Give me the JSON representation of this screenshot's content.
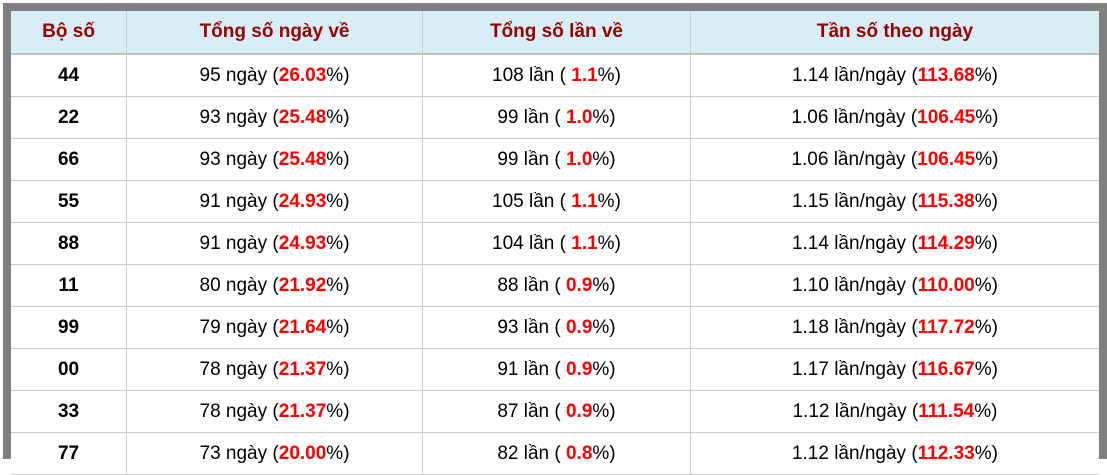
{
  "colors": {
    "frame_gray": "#7f7f7f",
    "header_bg": "#d9edf7",
    "header_text": "#990000",
    "highlight_red": "#ff0000",
    "border_light": "#cccccc",
    "body_text": "#000000"
  },
  "table": {
    "headers": [
      "Bộ số",
      "Tổng số ngày về",
      "Tổng số lần về",
      "Tần số theo ngày"
    ],
    "rows": [
      {
        "pair": "44",
        "days_prefix": "95 ngày (",
        "days_pct": "26.03",
        "days_suffix": "%)",
        "times_prefix": "108 lần ( ",
        "times_pct": "1.1",
        "times_suffix": "%)",
        "freq_prefix": "1.14 lần/ngày (",
        "freq_pct": "113.68",
        "freq_suffix": "%)"
      },
      {
        "pair": "22",
        "days_prefix": "93 ngày (",
        "days_pct": "25.48",
        "days_suffix": "%)",
        "times_prefix": "99 lần ( ",
        "times_pct": "1.0",
        "times_suffix": "%)",
        "freq_prefix": "1.06 lần/ngày (",
        "freq_pct": "106.45",
        "freq_suffix": "%)"
      },
      {
        "pair": "66",
        "days_prefix": "93 ngày (",
        "days_pct": "25.48",
        "days_suffix": "%)",
        "times_prefix": "99 lần ( ",
        "times_pct": "1.0",
        "times_suffix": "%)",
        "freq_prefix": "1.06 lần/ngày (",
        "freq_pct": "106.45",
        "freq_suffix": "%)"
      },
      {
        "pair": "55",
        "days_prefix": "91 ngày (",
        "days_pct": "24.93",
        "days_suffix": "%)",
        "times_prefix": "105 lần ( ",
        "times_pct": "1.1",
        "times_suffix": "%)",
        "freq_prefix": "1.15 lần/ngày (",
        "freq_pct": "115.38",
        "freq_suffix": "%)"
      },
      {
        "pair": "88",
        "days_prefix": "91 ngày (",
        "days_pct": "24.93",
        "days_suffix": "%)",
        "times_prefix": "104 lần ( ",
        "times_pct": "1.1",
        "times_suffix": "%)",
        "freq_prefix": "1.14 lần/ngày (",
        "freq_pct": "114.29",
        "freq_suffix": "%)"
      },
      {
        "pair": "11",
        "days_prefix": "80 ngày (",
        "days_pct": "21.92",
        "days_suffix": "%)",
        "times_prefix": "88 lần ( ",
        "times_pct": "0.9",
        "times_suffix": "%)",
        "freq_prefix": "1.10 lần/ngày (",
        "freq_pct": "110.00",
        "freq_suffix": "%)"
      },
      {
        "pair": "99",
        "days_prefix": "79 ngày (",
        "days_pct": "21.64",
        "days_suffix": "%)",
        "times_prefix": "93 lần ( ",
        "times_pct": "0.9",
        "times_suffix": "%)",
        "freq_prefix": "1.18 lần/ngày (",
        "freq_pct": "117.72",
        "freq_suffix": "%)"
      },
      {
        "pair": "00",
        "days_prefix": "78 ngày (",
        "days_pct": "21.37",
        "days_suffix": "%)",
        "times_prefix": "91 lần ( ",
        "times_pct": "0.9",
        "times_suffix": "%)",
        "freq_prefix": "1.17 lần/ngày (",
        "freq_pct": "116.67",
        "freq_suffix": "%)"
      },
      {
        "pair": "33",
        "days_prefix": "78 ngày (",
        "days_pct": "21.37",
        "days_suffix": "%)",
        "times_prefix": "87 lần ( ",
        "times_pct": "0.9",
        "times_suffix": "%)",
        "freq_prefix": "1.12 lần/ngày (",
        "freq_pct": "111.54",
        "freq_suffix": "%)"
      },
      {
        "pair": "77",
        "days_prefix": "73 ngày (",
        "days_pct": "20.00",
        "days_suffix": "%)",
        "times_prefix": "82 lần ( ",
        "times_pct": "0.8",
        "times_suffix": "%)",
        "freq_prefix": "1.12 lần/ngày (",
        "freq_pct": "112.33",
        "freq_suffix": "%)"
      }
    ]
  }
}
